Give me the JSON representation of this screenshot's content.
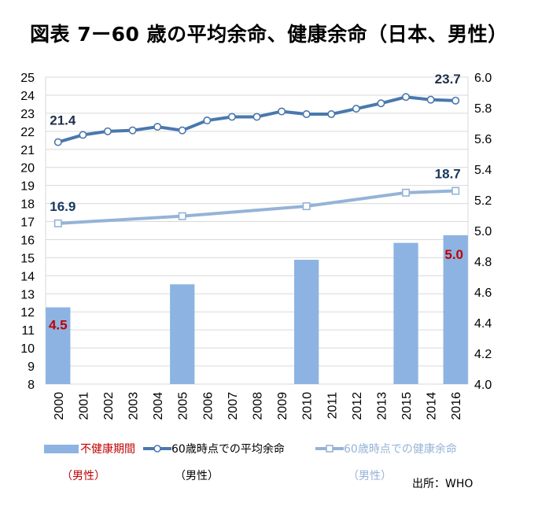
{
  "title": "図表 7ー60 歳の平均余命、健康余命（日本、男性）",
  "chart_data": {
    "type": "bar+line",
    "categories": [
      "2000",
      "2001",
      "2002",
      "2003",
      "2004",
      "2005",
      "2006",
      "2007",
      "2008",
      "2009",
      "2010",
      "2011",
      "2012",
      "2013",
      "2015",
      "2014",
      "2016"
    ],
    "left_axis": {
      "min": 8,
      "max": 25,
      "step": 1
    },
    "right_axis": {
      "min": 4.0,
      "max": 6.0,
      "step": 0.2
    },
    "series": [
      {
        "name": "不健康期間",
        "type": "bar",
        "axis": "right",
        "color": "#8db3e2",
        "values": [
          4.5,
          null,
          null,
          null,
          null,
          4.65,
          null,
          null,
          null,
          null,
          4.81,
          null,
          null,
          null,
          4.92,
          null,
          4.97
        ]
      },
      {
        "name": "60歳時点での平均余命",
        "type": "line",
        "axis": "left",
        "color": "#4a78ad",
        "values": [
          21.4,
          21.8,
          22.0,
          22.05,
          22.25,
          22.05,
          22.6,
          22.8,
          22.8,
          23.1,
          22.95,
          22.95,
          23.25,
          23.55,
          23.9,
          23.75,
          23.7
        ]
      },
      {
        "name": "60歳時点での健康余命",
        "type": "line",
        "axis": "left",
        "color": "#95b3d7",
        "values": [
          16.9,
          null,
          null,
          null,
          null,
          17.3,
          null,
          null,
          null,
          null,
          17.85,
          null,
          null,
          null,
          18.6,
          null,
          18.7
        ]
      }
    ],
    "data_labels": [
      {
        "series": 1,
        "index": 0,
        "text": "21.4",
        "color": "#1f2f4a"
      },
      {
        "series": 1,
        "index": 16,
        "text": "23.7",
        "color": "#1f2f4a"
      },
      {
        "series": 2,
        "index": 0,
        "text": "16.9",
        "color": "#17375e"
      },
      {
        "series": 2,
        "index": 16,
        "text": "18.7",
        "color": "#17375e"
      },
      {
        "series": 0,
        "index": 0,
        "text": "4.5",
        "color": "#c00000"
      },
      {
        "series": 0,
        "index": 16,
        "text": "5.0",
        "color": "#c00000"
      }
    ]
  },
  "legend": {
    "bar_label": "不健康期間",
    "bar_sub": "（男性）",
    "life_label": "60歳時点での平均余命",
    "life_sub": "（男性）",
    "health_label": "60歳時点での健康余命",
    "health_sub": "（男性）"
  },
  "source": "出所：WHO",
  "colors": {
    "bar_text": "#c00000",
    "health_text": "#95b3d7",
    "grid": "#d9d9d9"
  }
}
